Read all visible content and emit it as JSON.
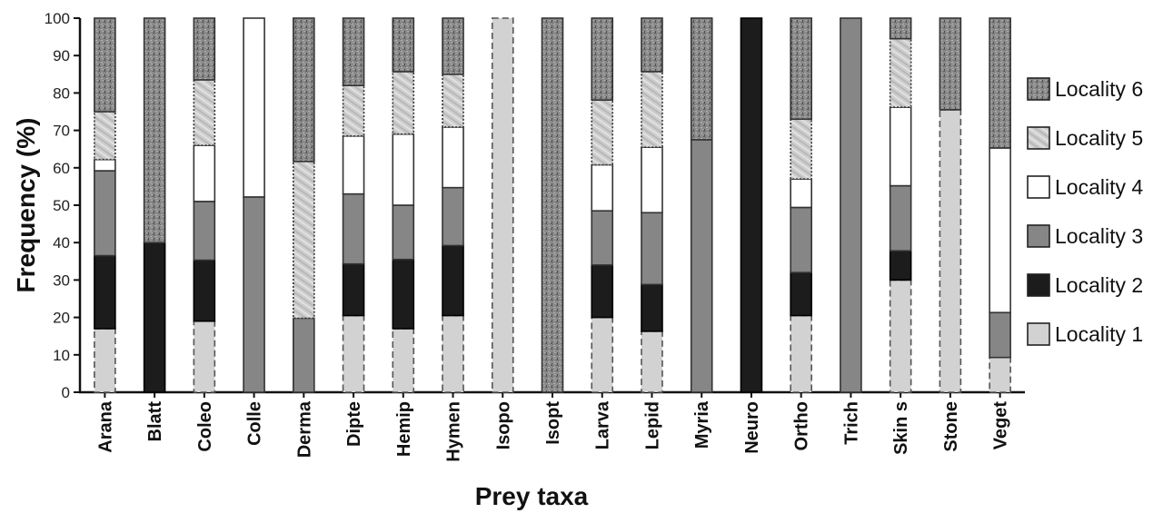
{
  "chart_data": {
    "type": "bar",
    "stacked": true,
    "title": "",
    "xlabel": "Prey taxa",
    "ylabel": "Frequency (%)",
    "ylim": [
      0,
      100
    ],
    "yticks": [
      0,
      10,
      20,
      30,
      40,
      50,
      60,
      70,
      80,
      90,
      100
    ],
    "grid": false,
    "legend_position": "right",
    "categories": [
      "Arana",
      "Blatt",
      "Coleo",
      "Colle",
      "Derma",
      "Dipte",
      "Hemip",
      "Hymen",
      "Isopo",
      "Isopt",
      "Larva",
      "Lepid",
      "Myria",
      "Neuro",
      "Ortho",
      "Trich",
      "Skin s",
      "Stone",
      "Veget"
    ],
    "series": [
      {
        "name": "Locality 1",
        "values": [
          17,
          0,
          19,
          0,
          0,
          20.5,
          17,
          20.5,
          100,
          0,
          20,
          16.3,
          0,
          0,
          20.5,
          0,
          30,
          75.5,
          9.3
        ]
      },
      {
        "name": "Locality 2",
        "values": [
          19.5,
          40,
          16.3,
          0,
          0,
          13.8,
          18.5,
          18.7,
          0,
          0,
          14,
          12.5,
          0,
          100,
          11.5,
          0,
          7.8,
          0,
          0
        ]
      },
      {
        "name": "Locality 3",
        "values": [
          22.7,
          0,
          15.7,
          52.2,
          19.8,
          18.7,
          14.5,
          15.5,
          0,
          0,
          14.5,
          19.2,
          67.5,
          0,
          17.4,
          100,
          17.4,
          0,
          12
        ]
      },
      {
        "name": "Locality 4",
        "values": [
          3,
          0,
          15,
          47.8,
          0,
          15.5,
          19,
          16.2,
          0,
          0,
          12.3,
          17.5,
          0,
          0,
          7.6,
          0,
          21,
          0,
          44
        ]
      },
      {
        "name": "Locality 5",
        "values": [
          12.8,
          0,
          17.5,
          0,
          41.9,
          13.5,
          16.7,
          14.1,
          0,
          0,
          17.3,
          20.2,
          0,
          0,
          16,
          0,
          18.3,
          0,
          0
        ]
      },
      {
        "name": "Locality 6",
        "values": [
          25,
          60,
          16.5,
          0,
          38.3,
          18,
          14.3,
          15,
          0,
          100,
          21.9,
          14.3,
          32.5,
          0,
          27,
          0,
          5.5,
          24.5,
          34.7
        ]
      }
    ],
    "colors": {
      "Locality 1": "#d2d2d2",
      "Locality 2": "#1c1c1c",
      "Locality 3": "#868686",
      "Locality 4": "#ffffff",
      "Locality 5": "#c9c9c9",
      "Locality 6": "#8c8c8c"
    }
  }
}
